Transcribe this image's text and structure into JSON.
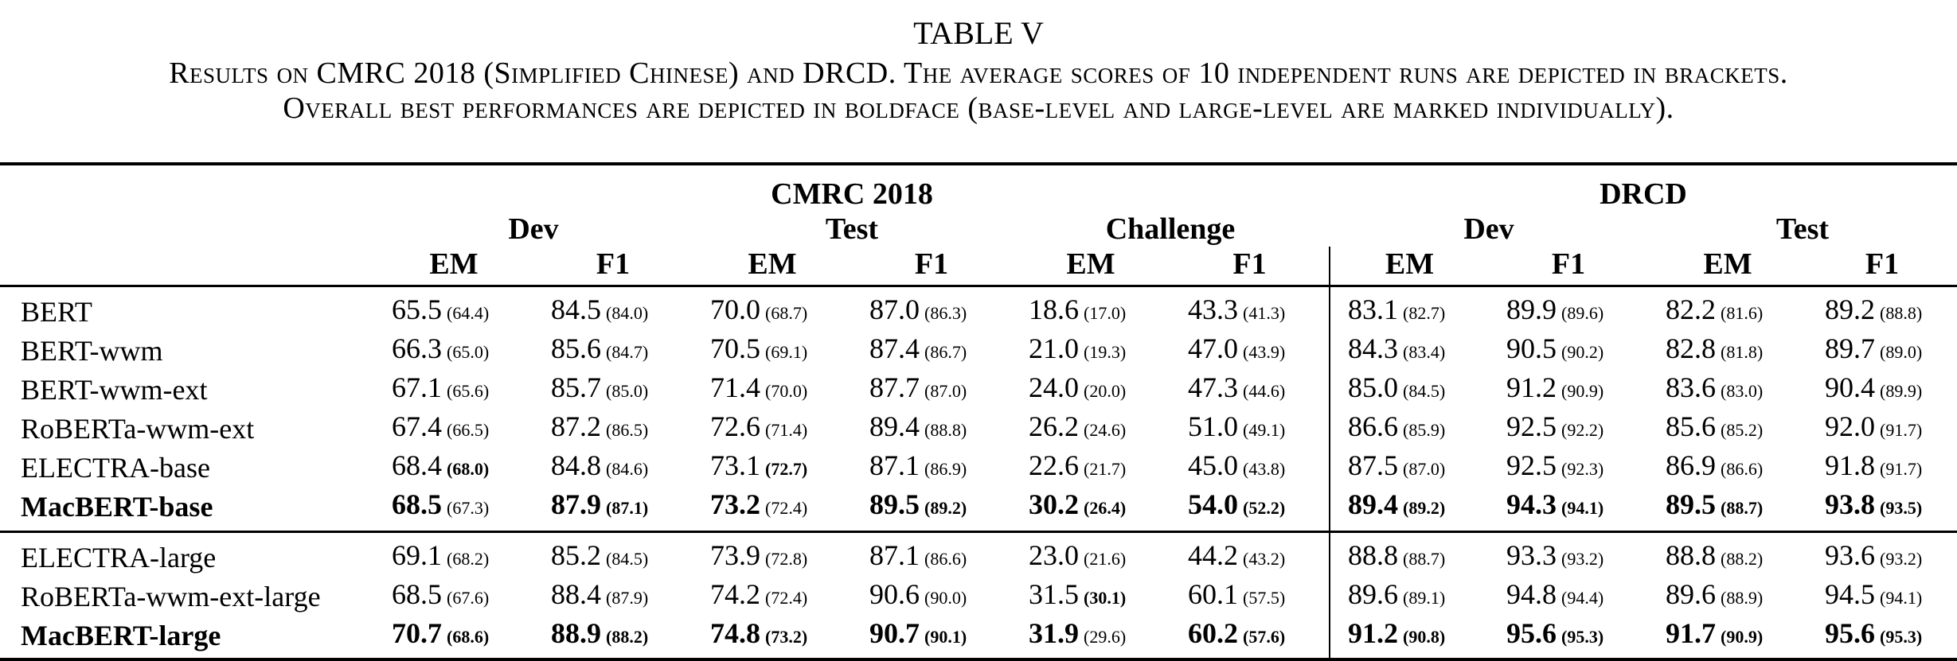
{
  "caption": {
    "title": "TABLE V",
    "line1": "Results on CMRC 2018 (Simplified Chinese) and DRCD. The average scores of 10 independent runs are depicted in brackets.",
    "line2": "Overall best performances are depicted in boldface (base-level and large-level are marked individually)."
  },
  "headers": {
    "cmrc": "CMRC 2018",
    "drcd": "DRCD",
    "dev": "Dev",
    "test": "Test",
    "challenge": "Challenge",
    "em": "EM",
    "f1": "F1"
  },
  "groups": [
    [
      {
        "name": "BERT",
        "name_bold": false,
        "cells": [
          {
            "v": "65.5",
            "a": "(64.4)",
            "vb": false,
            "ab": false
          },
          {
            "v": "84.5",
            "a": "(84.0)",
            "vb": false,
            "ab": false
          },
          {
            "v": "70.0",
            "a": "(68.7)",
            "vb": false,
            "ab": false
          },
          {
            "v": "87.0",
            "a": "(86.3)",
            "vb": false,
            "ab": false
          },
          {
            "v": "18.6",
            "a": "(17.0)",
            "vb": false,
            "ab": false
          },
          {
            "v": "43.3",
            "a": "(41.3)",
            "vb": false,
            "ab": false
          },
          {
            "v": "83.1",
            "a": "(82.7)",
            "vb": false,
            "ab": false
          },
          {
            "v": "89.9",
            "a": "(89.6)",
            "vb": false,
            "ab": false
          },
          {
            "v": "82.2",
            "a": "(81.6)",
            "vb": false,
            "ab": false
          },
          {
            "v": "89.2",
            "a": "(88.8)",
            "vb": false,
            "ab": false
          }
        ]
      },
      {
        "name": "BERT-wwm",
        "name_bold": false,
        "cells": [
          {
            "v": "66.3",
            "a": "(65.0)",
            "vb": false,
            "ab": false
          },
          {
            "v": "85.6",
            "a": "(84.7)",
            "vb": false,
            "ab": false
          },
          {
            "v": "70.5",
            "a": "(69.1)",
            "vb": false,
            "ab": false
          },
          {
            "v": "87.4",
            "a": "(86.7)",
            "vb": false,
            "ab": false
          },
          {
            "v": "21.0",
            "a": "(19.3)",
            "vb": false,
            "ab": false
          },
          {
            "v": "47.0",
            "a": "(43.9)",
            "vb": false,
            "ab": false
          },
          {
            "v": "84.3",
            "a": "(83.4)",
            "vb": false,
            "ab": false
          },
          {
            "v": "90.5",
            "a": "(90.2)",
            "vb": false,
            "ab": false
          },
          {
            "v": "82.8",
            "a": "(81.8)",
            "vb": false,
            "ab": false
          },
          {
            "v": "89.7",
            "a": "(89.0)",
            "vb": false,
            "ab": false
          }
        ]
      },
      {
        "name": "BERT-wwm-ext",
        "name_bold": false,
        "cells": [
          {
            "v": "67.1",
            "a": "(65.6)",
            "vb": false,
            "ab": false
          },
          {
            "v": "85.7",
            "a": "(85.0)",
            "vb": false,
            "ab": false
          },
          {
            "v": "71.4",
            "a": "(70.0)",
            "vb": false,
            "ab": false
          },
          {
            "v": "87.7",
            "a": "(87.0)",
            "vb": false,
            "ab": false
          },
          {
            "v": "24.0",
            "a": "(20.0)",
            "vb": false,
            "ab": false
          },
          {
            "v": "47.3",
            "a": "(44.6)",
            "vb": false,
            "ab": false
          },
          {
            "v": "85.0",
            "a": "(84.5)",
            "vb": false,
            "ab": false
          },
          {
            "v": "91.2",
            "a": "(90.9)",
            "vb": false,
            "ab": false
          },
          {
            "v": "83.6",
            "a": "(83.0)",
            "vb": false,
            "ab": false
          },
          {
            "v": "90.4",
            "a": "(89.9)",
            "vb": false,
            "ab": false
          }
        ]
      },
      {
        "name": "RoBERTa-wwm-ext",
        "name_bold": false,
        "cells": [
          {
            "v": "67.4",
            "a": "(66.5)",
            "vb": false,
            "ab": false
          },
          {
            "v": "87.2",
            "a": "(86.5)",
            "vb": false,
            "ab": false
          },
          {
            "v": "72.6",
            "a": "(71.4)",
            "vb": false,
            "ab": false
          },
          {
            "v": "89.4",
            "a": "(88.8)",
            "vb": false,
            "ab": false
          },
          {
            "v": "26.2",
            "a": "(24.6)",
            "vb": false,
            "ab": false
          },
          {
            "v": "51.0",
            "a": "(49.1)",
            "vb": false,
            "ab": false
          },
          {
            "v": "86.6",
            "a": "(85.9)",
            "vb": false,
            "ab": false
          },
          {
            "v": "92.5",
            "a": "(92.2)",
            "vb": false,
            "ab": false
          },
          {
            "v": "85.6",
            "a": "(85.2)",
            "vb": false,
            "ab": false
          },
          {
            "v": "92.0",
            "a": "(91.7)",
            "vb": false,
            "ab": false
          }
        ]
      },
      {
        "name": "ELECTRA-base",
        "name_bold": false,
        "cells": [
          {
            "v": "68.4",
            "a": "(68.0)",
            "vb": false,
            "ab": true
          },
          {
            "v": "84.8",
            "a": "(84.6)",
            "vb": false,
            "ab": false
          },
          {
            "v": "73.1",
            "a": "(72.7)",
            "vb": false,
            "ab": true
          },
          {
            "v": "87.1",
            "a": "(86.9)",
            "vb": false,
            "ab": false
          },
          {
            "v": "22.6",
            "a": "(21.7)",
            "vb": false,
            "ab": false
          },
          {
            "v": "45.0",
            "a": "(43.8)",
            "vb": false,
            "ab": false
          },
          {
            "v": "87.5",
            "a": "(87.0)",
            "vb": false,
            "ab": false
          },
          {
            "v": "92.5",
            "a": "(92.3)",
            "vb": false,
            "ab": false
          },
          {
            "v": "86.9",
            "a": "(86.6)",
            "vb": false,
            "ab": false
          },
          {
            "v": "91.8",
            "a": "(91.7)",
            "vb": false,
            "ab": false
          }
        ]
      },
      {
        "name": "MacBERT-base",
        "name_bold": true,
        "cells": [
          {
            "v": "68.5",
            "a": "(67.3)",
            "vb": true,
            "ab": false
          },
          {
            "v": "87.9",
            "a": "(87.1)",
            "vb": true,
            "ab": true
          },
          {
            "v": "73.2",
            "a": "(72.4)",
            "vb": true,
            "ab": false
          },
          {
            "v": "89.5",
            "a": "(89.2)",
            "vb": true,
            "ab": true
          },
          {
            "v": "30.2",
            "a": "(26.4)",
            "vb": true,
            "ab": true
          },
          {
            "v": "54.0",
            "a": "(52.2)",
            "vb": true,
            "ab": true
          },
          {
            "v": "89.4",
            "a": "(89.2)",
            "vb": true,
            "ab": true
          },
          {
            "v": "94.3",
            "a": "(94.1)",
            "vb": true,
            "ab": true
          },
          {
            "v": "89.5",
            "a": "(88.7)",
            "vb": true,
            "ab": true
          },
          {
            "v": "93.8",
            "a": "(93.5)",
            "vb": true,
            "ab": true
          }
        ]
      }
    ],
    [
      {
        "name": "ELECTRA-large",
        "name_bold": false,
        "cells": [
          {
            "v": "69.1",
            "a": "(68.2)",
            "vb": false,
            "ab": false
          },
          {
            "v": "85.2",
            "a": "(84.5)",
            "vb": false,
            "ab": false
          },
          {
            "v": "73.9",
            "a": "(72.8)",
            "vb": false,
            "ab": false
          },
          {
            "v": "87.1",
            "a": "(86.6)",
            "vb": false,
            "ab": false
          },
          {
            "v": "23.0",
            "a": "(21.6)",
            "vb": false,
            "ab": false
          },
          {
            "v": "44.2",
            "a": "(43.2)",
            "vb": false,
            "ab": false
          },
          {
            "v": "88.8",
            "a": "(88.7)",
            "vb": false,
            "ab": false
          },
          {
            "v": "93.3",
            "a": "(93.2)",
            "vb": false,
            "ab": false
          },
          {
            "v": "88.8",
            "a": "(88.2)",
            "vb": false,
            "ab": false
          },
          {
            "v": "93.6",
            "a": "(93.2)",
            "vb": false,
            "ab": false
          }
        ]
      },
      {
        "name": "RoBERTa-wwm-ext-large",
        "name_bold": false,
        "cells": [
          {
            "v": "68.5",
            "a": "(67.6)",
            "vb": false,
            "ab": false
          },
          {
            "v": "88.4",
            "a": "(87.9)",
            "vb": false,
            "ab": false
          },
          {
            "v": "74.2",
            "a": "(72.4)",
            "vb": false,
            "ab": false
          },
          {
            "v": "90.6",
            "a": "(90.0)",
            "vb": false,
            "ab": false
          },
          {
            "v": "31.5",
            "a": "(30.1)",
            "vb": false,
            "ab": true
          },
          {
            "v": "60.1",
            "a": "(57.5)",
            "vb": false,
            "ab": false
          },
          {
            "v": "89.6",
            "a": "(89.1)",
            "vb": false,
            "ab": false
          },
          {
            "v": "94.8",
            "a": "(94.4)",
            "vb": false,
            "ab": false
          },
          {
            "v": "89.6",
            "a": "(88.9)",
            "vb": false,
            "ab": false
          },
          {
            "v": "94.5",
            "a": "(94.1)",
            "vb": false,
            "ab": false
          }
        ]
      },
      {
        "name": "MacBERT-large",
        "name_bold": true,
        "cells": [
          {
            "v": "70.7",
            "a": "(68.6)",
            "vb": true,
            "ab": true
          },
          {
            "v": "88.9",
            "a": "(88.2)",
            "vb": true,
            "ab": true
          },
          {
            "v": "74.8",
            "a": "(73.2)",
            "vb": true,
            "ab": true
          },
          {
            "v": "90.7",
            "a": "(90.1)",
            "vb": true,
            "ab": true
          },
          {
            "v": "31.9",
            "a": "(29.6)",
            "vb": true,
            "ab": false
          },
          {
            "v": "60.2",
            "a": "(57.6)",
            "vb": true,
            "ab": true
          },
          {
            "v": "91.2",
            "a": "(90.8)",
            "vb": true,
            "ab": true
          },
          {
            "v": "95.6",
            "a": "(95.3)",
            "vb": true,
            "ab": true
          },
          {
            "v": "91.7",
            "a": "(90.9)",
            "vb": true,
            "ab": true
          },
          {
            "v": "95.6",
            "a": "(95.3)",
            "vb": true,
            "ab": true
          }
        ]
      }
    ]
  ]
}
